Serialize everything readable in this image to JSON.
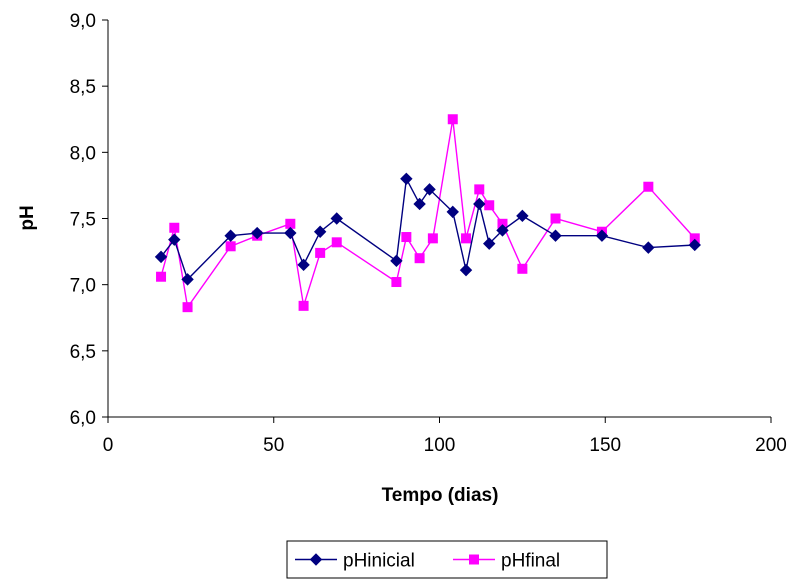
{
  "chart_data": {
    "type": "line",
    "title": "",
    "xlabel": "Tempo (dias)",
    "ylabel": "pH",
    "xlim": [
      0,
      200
    ],
    "ylim": [
      6.0,
      9.0
    ],
    "x_ticks": [
      "0",
      "50",
      "100",
      "150",
      "200"
    ],
    "y_ticks": [
      "6,0",
      "6,5",
      "7,0",
      "7,5",
      "8,0",
      "8,5",
      "9,0"
    ],
    "grid": false,
    "legend_position": "bottom",
    "series": [
      {
        "name": "pHinicial",
        "color": "#000080",
        "marker": "diamond",
        "x": [
          16,
          20,
          24,
          37,
          45,
          55,
          59,
          64,
          69,
          87,
          90,
          94,
          97,
          104,
          108,
          112,
          115,
          119,
          125,
          135,
          149,
          163,
          177
        ],
        "y": [
          7.21,
          7.34,
          7.04,
          7.37,
          7.39,
          7.39,
          7.15,
          7.4,
          7.5,
          7.18,
          7.8,
          7.61,
          7.72,
          7.55,
          7.11,
          7.61,
          7.31,
          7.41,
          7.52,
          7.37,
          7.37,
          7.28,
          7.3
        ]
      },
      {
        "name": "pHfinal",
        "color": "#ff00ff",
        "marker": "square",
        "x": [
          16,
          20,
          24,
          37,
          45,
          55,
          59,
          64,
          69,
          87,
          90,
          94,
          98,
          104,
          108,
          112,
          115,
          119,
          125,
          135,
          149,
          163,
          177
        ],
        "y": [
          7.06,
          7.43,
          6.83,
          7.29,
          7.37,
          7.46,
          6.84,
          7.24,
          7.32,
          7.02,
          7.36,
          7.2,
          7.35,
          8.25,
          7.35,
          7.72,
          7.6,
          7.46,
          7.12,
          7.5,
          7.4,
          7.74,
          7.35
        ]
      }
    ]
  }
}
